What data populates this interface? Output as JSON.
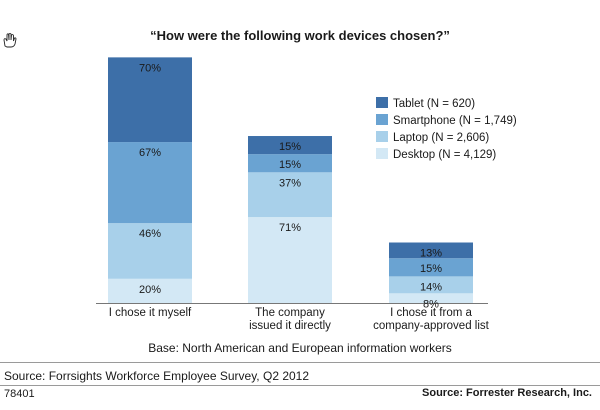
{
  "page": {
    "title": "“How were the following work devices chosen?”",
    "base_note": "Base: North American and European information workers",
    "source": "Source: Forrsights Workforce Employee Survey, Q2 2012",
    "figure_code": "78401",
    "publisher": "Source: Forrester Research, Inc."
  },
  "colors": {
    "Tablet": "#3d6fa8",
    "Smartphone": "#6aa3d2",
    "Laptop": "#a8d0ea",
    "Desktop": "#d3e8f5"
  },
  "chart_data": {
    "type": "bar",
    "stacked": true,
    "title": "“How were the following work devices chosen?”",
    "categories": [
      "I chose it myself",
      "The company issued it directly",
      "I chose it from a company-approved list"
    ],
    "category_labels": [
      [
        "I chose it myself"
      ],
      [
        "The company",
        "issued it directly"
      ],
      [
        "I chose it from a",
        "company-approved list"
      ]
    ],
    "series": [
      {
        "name": "Desktop (N = 4,129)",
        "key": "Desktop",
        "values": [
          20,
          71,
          8
        ]
      },
      {
        "name": "Laptop (N = 2,606)",
        "key": "Laptop",
        "values": [
          46,
          37,
          14
        ]
      },
      {
        "name": "Smartphone (N = 1,749)",
        "key": "Smartphone",
        "values": [
          67,
          15,
          15
        ]
      },
      {
        "name": "Tablet (N = 620)",
        "key": "Tablet",
        "values": [
          70,
          15,
          13
        ]
      }
    ],
    "legend_order": [
      "Tablet",
      "Smartphone",
      "Laptop",
      "Desktop"
    ],
    "value_suffix": "%",
    "legend_position": "right",
    "grid": false,
    "xlabel": "",
    "ylabel": ""
  }
}
